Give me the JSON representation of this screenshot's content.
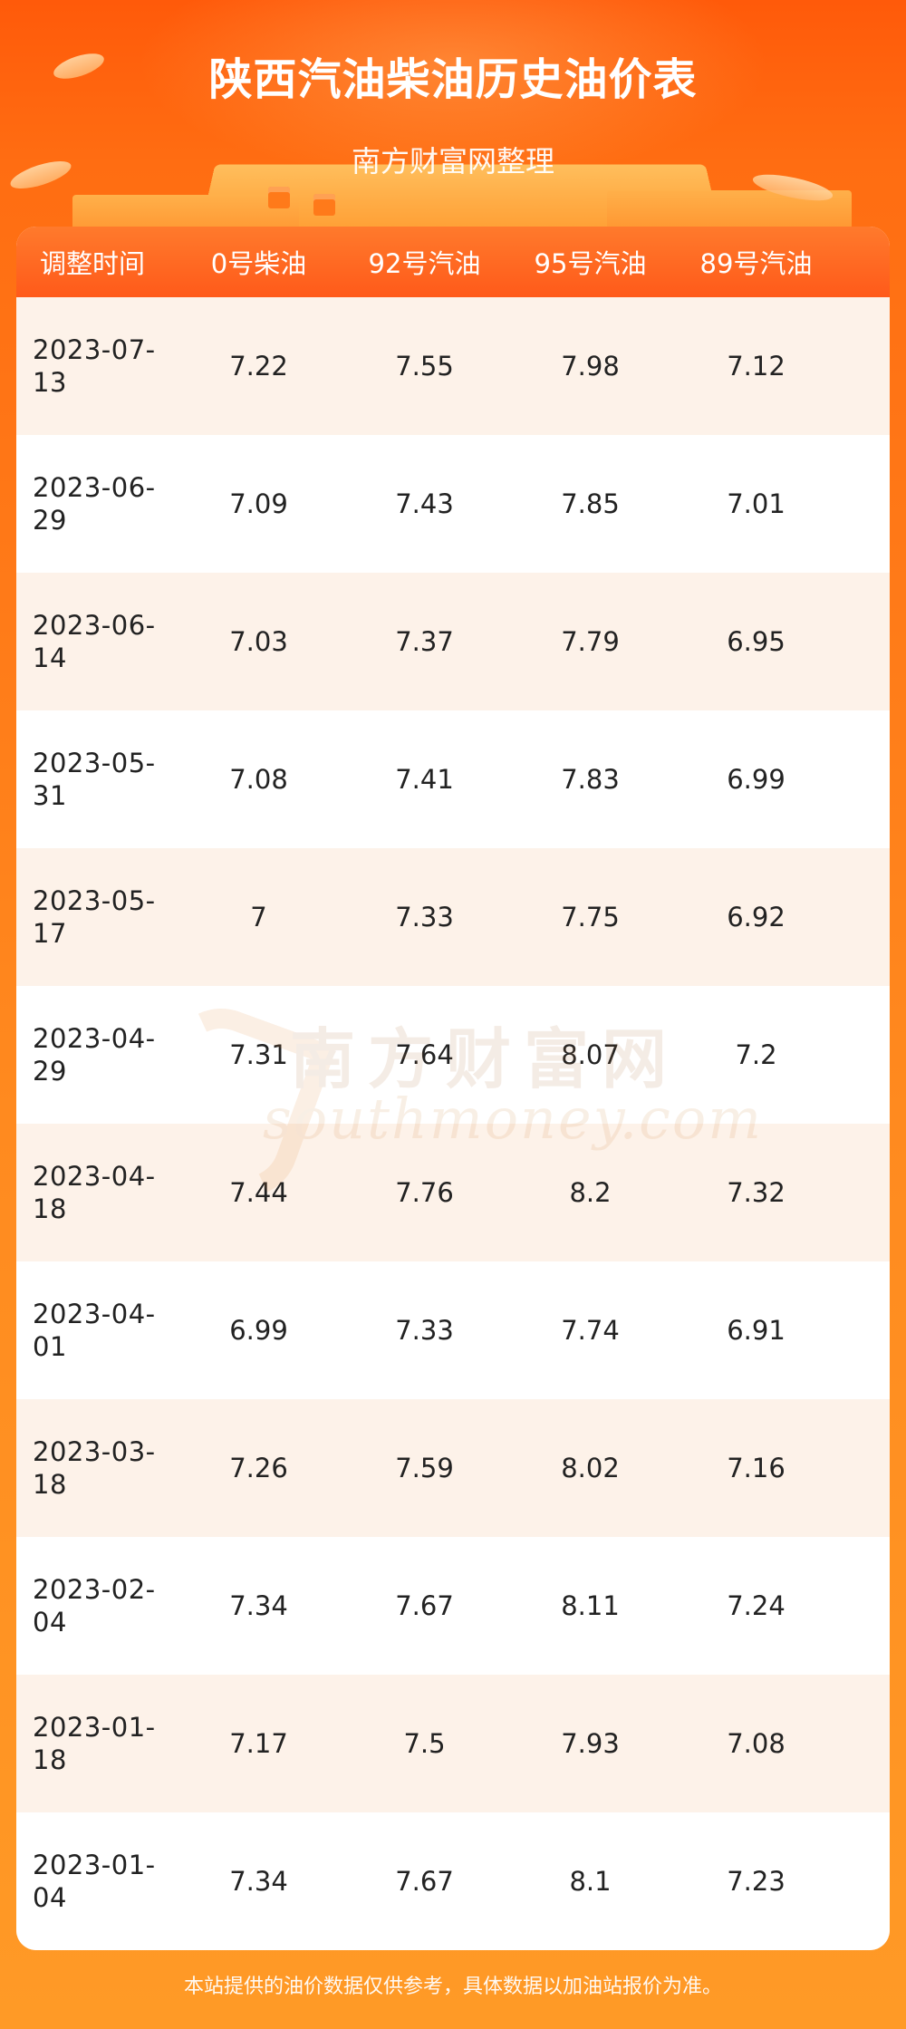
{
  "header": {
    "title": "陕西汽油柴油历史油价表",
    "subtitle": "南方财富网整理"
  },
  "table": {
    "columns": [
      "调整时间",
      "0号柴油",
      "92号汽油",
      "95号汽油",
      "89号汽油"
    ],
    "rows": [
      {
        "date": "2023-07-13",
        "diesel0": "7.22",
        "gas92": "7.55",
        "gas95": "7.98",
        "gas89": "7.12"
      },
      {
        "date": "2023-06-29",
        "diesel0": "7.09",
        "gas92": "7.43",
        "gas95": "7.85",
        "gas89": "7.01"
      },
      {
        "date": "2023-06-14",
        "diesel0": "7.03",
        "gas92": "7.37",
        "gas95": "7.79",
        "gas89": "6.95"
      },
      {
        "date": "2023-05-31",
        "diesel0": "7.08",
        "gas92": "7.41",
        "gas95": "7.83",
        "gas89": "6.99"
      },
      {
        "date": "2023-05-17",
        "diesel0": "7",
        "gas92": "7.33",
        "gas95": "7.75",
        "gas89": "6.92"
      },
      {
        "date": "2023-04-29",
        "diesel0": "7.31",
        "gas92": "7.64",
        "gas95": "8.07",
        "gas89": "7.2"
      },
      {
        "date": "2023-04-18",
        "diesel0": "7.44",
        "gas92": "7.76",
        "gas95": "8.2",
        "gas89": "7.32"
      },
      {
        "date": "2023-04-01",
        "diesel0": "6.99",
        "gas92": "7.33",
        "gas95": "7.74",
        "gas89": "6.91"
      },
      {
        "date": "2023-03-18",
        "diesel0": "7.26",
        "gas92": "7.59",
        "gas95": "8.02",
        "gas89": "7.16"
      },
      {
        "date": "2023-02-04",
        "diesel0": "7.34",
        "gas92": "7.67",
        "gas95": "8.11",
        "gas89": "7.24"
      },
      {
        "date": "2023-01-18",
        "diesel0": "7.17",
        "gas92": "7.5",
        "gas95": "7.93",
        "gas89": "7.08"
      },
      {
        "date": "2023-01-04",
        "diesel0": "7.34",
        "gas92": "7.67",
        "gas95": "8.1",
        "gas89": "7.23"
      }
    ]
  },
  "watermark": {
    "cn": "南方财富网",
    "en": "southmoney.com"
  },
  "footer": {
    "note": "本站提供的油价数据仅供参考，具体数据以加油站报价为准。"
  },
  "colors": {
    "accent": "#ff5a1a",
    "row_alt": "#fdf2e9"
  }
}
